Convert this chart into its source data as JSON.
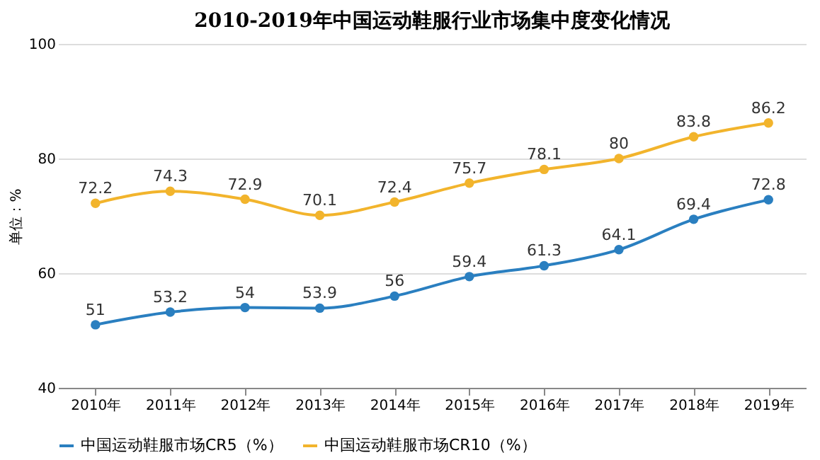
{
  "chart_data": {
    "type": "line",
    "title": "2010-2019年中国运动鞋服行业市场集中度变化情况",
    "ylabel": "单位：%",
    "categories": [
      "2010年",
      "2011年",
      "2012年",
      "2013年",
      "2014年",
      "2015年",
      "2016年",
      "2017年",
      "2018年",
      "2019年"
    ],
    "series": [
      {
        "name": "中国运动鞋服市场CR5（%）",
        "color": "#2a7fc0",
        "values": [
          51,
          53.2,
          54,
          53.9,
          56,
          59.4,
          61.3,
          64.1,
          69.4,
          72.8
        ]
      },
      {
        "name": "中国运动鞋服市场CR10（%）",
        "color": "#f2b42c",
        "values": [
          72.2,
          74.3,
          72.9,
          70.1,
          72.4,
          75.7,
          78.1,
          80,
          83.8,
          86.2
        ]
      }
    ],
    "ylim": [
      40,
      100
    ],
    "yticks": [
      40,
      60,
      80,
      100
    ],
    "grid": "y",
    "legend": "bottom",
    "marker": "circle",
    "line_style": "solid",
    "data_labels": true
  }
}
